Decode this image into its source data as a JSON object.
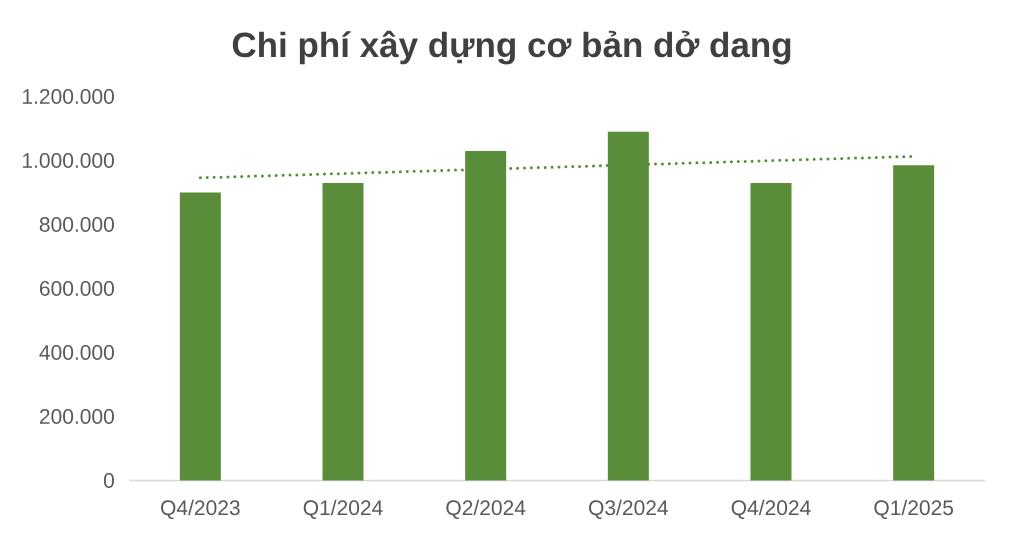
{
  "chart_data": {
    "type": "bar",
    "title": "Chi phí xây dựng cơ bản dở dang",
    "categories": [
      "Q4/2023",
      "Q1/2024",
      "Q2/2024",
      "Q3/2024",
      "Q4/2024",
      "Q1/2025"
    ],
    "series": [
      {
        "color": "#5a8d3a",
        "values": [
          900000,
          930000,
          1030000,
          1090000,
          930000,
          985000
        ]
      },
      {
        "type": "line",
        "color": "#5a8d3a",
        "x": [
          "Q4/2023",
          "Q1/2025"
        ],
        "values": [
          946000,
          1013000
        ],
        "line_style": "dotted"
      }
    ],
    "ylim": [
      0,
      1200000
    ],
    "yticks": [
      0,
      {
        "value": 200000,
        "label": "200.000"
      },
      {
        "value": 400000,
        "label": "400.000"
      },
      {
        "value": 600000,
        "label": "600.000"
      },
      {
        "value": 800000,
        "label": "800.000"
      },
      {
        "value": 1000000,
        "label": "1.000.000"
      },
      {
        "value": 1200000,
        "label": "1.200.000"
      }
    ]
  }
}
